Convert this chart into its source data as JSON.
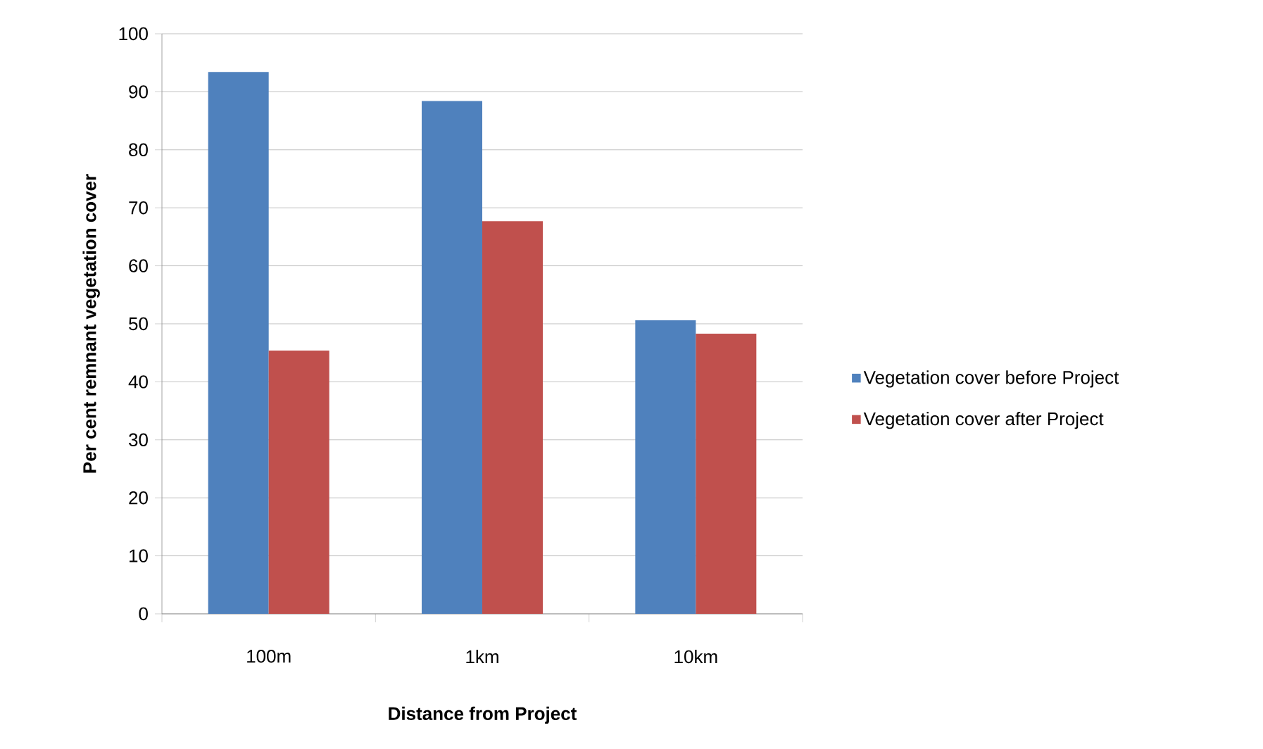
{
  "chart_data": {
    "type": "bar",
    "xlabel": "Distance from Project",
    "ylabel": "Per cent remnant vegetation cover",
    "categories": [
      "100m",
      "1km",
      "10km"
    ],
    "series": [
      {
        "name": "Vegetation cover before Project",
        "color": "#4f81bd",
        "values": [
          93.4,
          88.4,
          50.6
        ]
      },
      {
        "name": "Vegetation cover after Project",
        "color": "#c0504d",
        "values": [
          45.4,
          67.7,
          48.3
        ]
      }
    ],
    "ylim": [
      0,
      100
    ],
    "yticks": [
      0,
      10,
      20,
      30,
      40,
      50,
      60,
      70,
      80,
      90,
      100
    ],
    "grid": "y",
    "legend": "right"
  }
}
